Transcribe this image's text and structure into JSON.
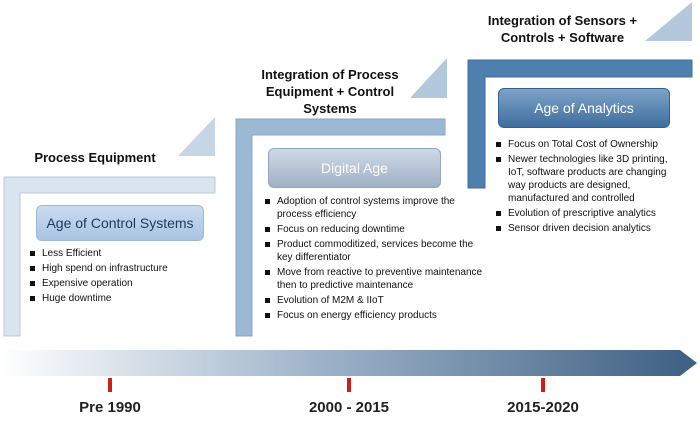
{
  "stages": [
    {
      "title": "Process Equipment",
      "age": "Age of Control Systems",
      "bullets": [
        "Less Efficient",
        "High spend on infrastructure",
        "Expensive operation",
        "Huge downtime"
      ]
    },
    {
      "title": "Integration of Process Equipment + Control Systems",
      "age": "Digital Age",
      "bullets": [
        "Adoption of control systems improve the process efficiency",
        "Focus on reducing downtime",
        "Product commoditized, services become the key differentiator",
        "Move from reactive to  preventive maintenance  then to predictive maintenance",
        "Evolution of M2M & IIoT",
        "Focus on energy efficiency products"
      ]
    },
    {
      "title": "Integration of Sensors + Controls + Software",
      "age": "Age of Analytics",
      "bullets": [
        "Focus on Total Cost of Ownership",
        "Newer technologies like 3D printing, IoT, software products are  changing way products are designed, manufactured and controlled",
        "Evolution of prescriptive analytics",
        "Sensor driven decision analytics"
      ]
    }
  ],
  "timeline": {
    "periods": [
      "Pre 1990",
      "2000 -  2015",
      "2015-2020"
    ]
  },
  "colors": {
    "step1": "#d9e4ef",
    "step2": "#9db8d3",
    "step3": "#4f7fae",
    "arrow_start": "#ffffff",
    "arrow_end": "#3d5f82",
    "tick": "#cc1f1a"
  }
}
